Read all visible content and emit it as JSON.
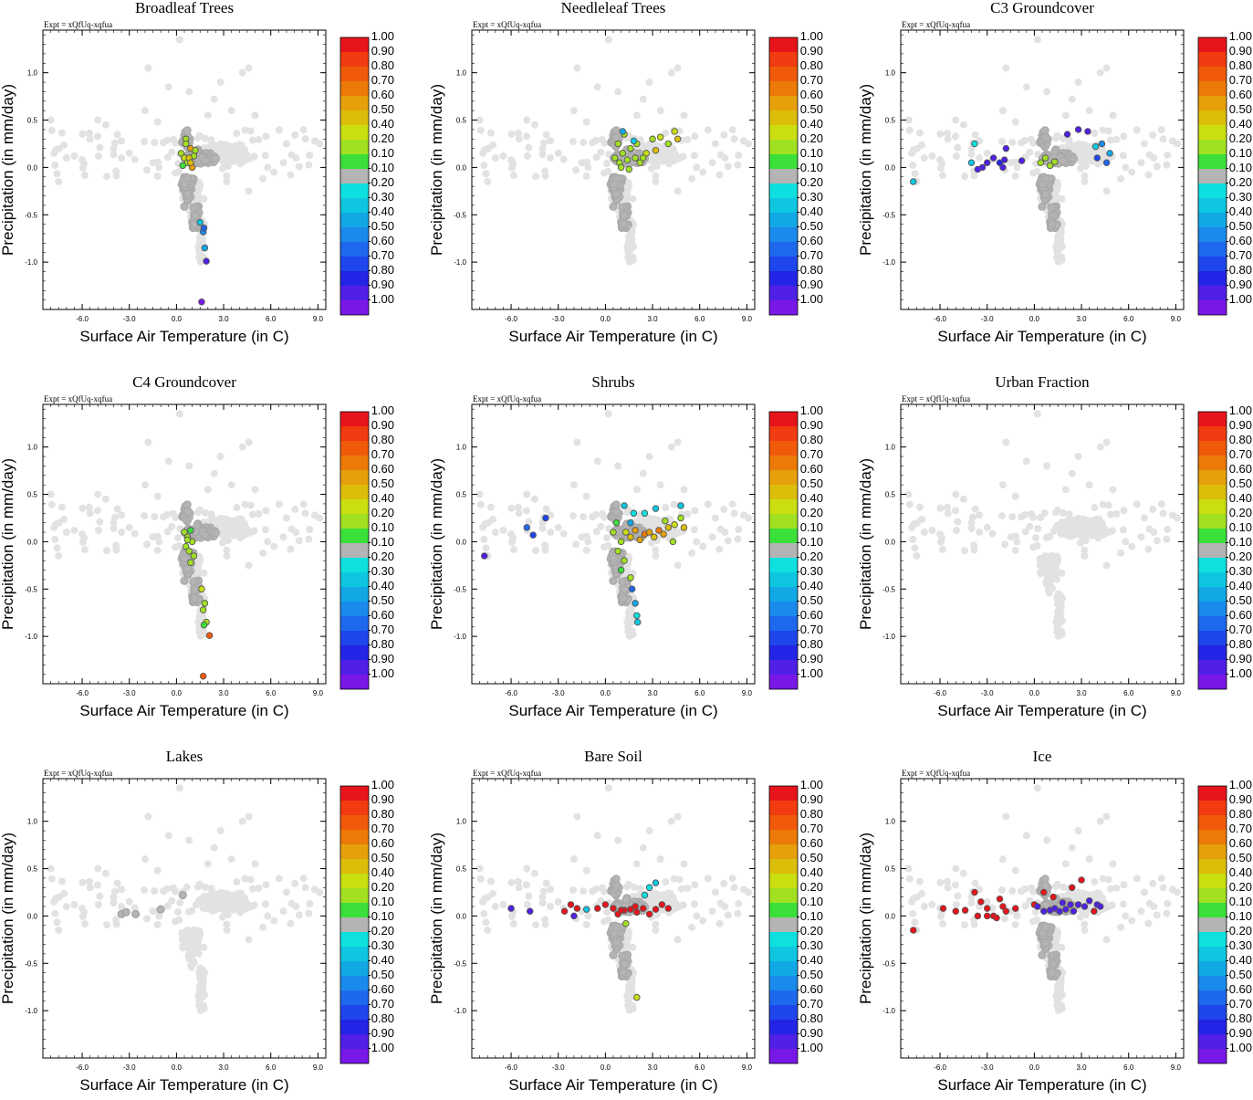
{
  "figure": {
    "expt_label": "Expt = xQfUq-xqfua",
    "xlabel": "Surface Air Temperature (in C)",
    "ylabel": "Precipitation (in mm/day)",
    "xlim": [
      -8.5,
      9.5
    ],
    "ylim": [
      -1.5,
      1.45
    ],
    "x_ticks": [
      "-6.0",
      "-3.0",
      "0.0",
      "3.0",
      "6.0",
      "9.0"
    ],
    "y_ticks": [
      "1.0",
      "0.5",
      "0.0",
      "-0.5",
      "-1.0"
    ],
    "x_tick_values": [
      -6,
      -3,
      0,
      3,
      6,
      9
    ],
    "y_tick_values": [
      1,
      0.5,
      0,
      -0.5,
      -1
    ]
  },
  "colorbar": {
    "labels": [
      "1.00",
      "0.90",
      "0.80",
      "0.70",
      "0.60",
      "0.50",
      "0.40",
      "0.20",
      "0.10",
      "-0.10",
      "-0.20",
      "-0.30",
      "-0.40",
      "-0.50",
      "-0.60",
      "-0.70",
      "-0.80",
      "-0.90",
      "-1.00"
    ],
    "colors": [
      "#e8141c",
      "#f03c10",
      "#f05a0a",
      "#ec7a06",
      "#e6a00a",
      "#dcbe0a",
      "#cade10",
      "#a2e022",
      "#3ce03a",
      "#b4b4b4",
      "#0ee0e0",
      "#0ec6e0",
      "#12a8e6",
      "#1a8aec",
      "#1e68ee",
      "#1e46ec",
      "#2424e6",
      "#5020e6",
      "#7818e6"
    ],
    "neutral_color": "#b4b4b4",
    "background_color": "#e2e2e2"
  },
  "chart_data": [
    {
      "type": "scatter",
      "title": "Broadleaf Trees",
      "xlabel": "Surface Air Temperature (in C)",
      "ylabel": "Precipitation (in mm/day)",
      "xlim": [
        -8.5,
        9.5
      ],
      "ylim": [
        -1.5,
        1.45
      ],
      "colored_points": [
        [
          0.3,
          0.15,
          0.2
        ],
        [
          0.5,
          0.1,
          0.4
        ],
        [
          0.7,
          0.05,
          0.2
        ],
        [
          0.9,
          0.2,
          0.6
        ],
        [
          1.1,
          0.12,
          0.3
        ],
        [
          0.6,
          0.3,
          0.2
        ],
        [
          1.0,
          0.0,
          0.6
        ],
        [
          0.8,
          0.1,
          0.5
        ],
        [
          1.2,
          0.18,
          0.3
        ],
        [
          0.4,
          0.02,
          0.1
        ],
        [
          0.6,
          0.25,
          0.3
        ],
        [
          0.9,
          0.05,
          0.45
        ],
        [
          1.5,
          -0.58,
          -0.3
        ],
        [
          1.7,
          -0.68,
          -0.5
        ],
        [
          1.8,
          -0.85,
          -0.4
        ],
        [
          1.9,
          -0.99,
          -0.9
        ],
        [
          1.6,
          -1.42,
          -1.0
        ],
        [
          1.75,
          -0.64,
          -0.6
        ]
      ]
    },
    {
      "type": "scatter",
      "title": "Needleleaf Trees",
      "xlabel": "Surface Air Temperature (in C)",
      "ylabel": "Precipitation (in mm/day)",
      "xlim": [
        -8.5,
        9.5
      ],
      "ylim": [
        -1.5,
        1.45
      ],
      "colored_points": [
        [
          0.6,
          0.1,
          0.2
        ],
        [
          0.9,
          0.05,
          0.2
        ],
        [
          1.1,
          0.15,
          0.3
        ],
        [
          1.4,
          0.08,
          0.2
        ],
        [
          1.6,
          0.2,
          0.2
        ],
        [
          1.9,
          0.1,
          0.3
        ],
        [
          2.2,
          0.05,
          0.2
        ],
        [
          0.8,
          0.25,
          0.3
        ],
        [
          2.6,
          0.15,
          0.4
        ],
        [
          3.0,
          0.3,
          0.3
        ],
        [
          3.5,
          0.32,
          0.4
        ],
        [
          4.0,
          0.25,
          0.2
        ],
        [
          4.4,
          0.38,
          0.4
        ],
        [
          4.6,
          0.3,
          0.5
        ],
        [
          1.2,
          0.35,
          0.2
        ],
        [
          2.0,
          0.25,
          0.3
        ],
        [
          1.0,
          0.0,
          0.2
        ],
        [
          1.5,
          -0.02,
          0.3
        ],
        [
          2.4,
          0.1,
          0.2
        ],
        [
          3.2,
          0.18,
          0.5
        ],
        [
          1.1,
          0.38,
          -0.4
        ],
        [
          1.8,
          0.28,
          -0.3
        ]
      ]
    },
    {
      "type": "scatter",
      "title": "C3 Groundcover",
      "xlabel": "Surface Air Temperature (in C)",
      "ylabel": "Precipitation (in mm/day)",
      "xlim": [
        -8.5,
        9.5
      ],
      "ylim": [
        -1.5,
        1.45
      ],
      "colored_points": [
        [
          -7.7,
          -0.15,
          -0.3
        ],
        [
          -3.8,
          0.25,
          -0.2
        ],
        [
          -4.0,
          0.05,
          -0.3
        ],
        [
          -3.3,
          0.0,
          -0.9
        ],
        [
          -3.0,
          0.05,
          -0.9
        ],
        [
          -2.6,
          0.1,
          -0.9
        ],
        [
          -2.2,
          0.05,
          -0.8
        ],
        [
          -1.9,
          0.08,
          -0.9
        ],
        [
          -3.6,
          -0.02,
          -0.9
        ],
        [
          -1.8,
          0.2,
          -0.9
        ],
        [
          -0.8,
          0.07,
          -0.9
        ],
        [
          -2.0,
          0.0,
          -0.9
        ],
        [
          0.4,
          0.05,
          0.2
        ],
        [
          0.7,
          0.1,
          0.2
        ],
        [
          1.0,
          0.02,
          0.3
        ],
        [
          1.3,
          0.06,
          0.2
        ],
        [
          2.1,
          0.35,
          -0.9
        ],
        [
          2.8,
          0.4,
          -0.9
        ],
        [
          3.4,
          0.38,
          -0.9
        ],
        [
          4.3,
          0.25,
          -0.5
        ],
        [
          4.0,
          0.1,
          -0.7
        ],
        [
          4.6,
          0.05,
          -0.6
        ],
        [
          4.8,
          0.15,
          -0.4
        ],
        [
          3.9,
          0.22,
          -0.3
        ]
      ]
    },
    {
      "type": "scatter",
      "title": "C4 Groundcover",
      "xlabel": "Surface Air Temperature (in C)",
      "ylabel": "Precipitation (in mm/day)",
      "xlim": [
        -8.5,
        9.5
      ],
      "ylim": [
        -1.5,
        1.45
      ],
      "colored_points": [
        [
          0.5,
          0.1,
          0.2
        ],
        [
          0.7,
          0.05,
          0.2
        ],
        [
          0.9,
          0.12,
          0.1
        ],
        [
          0.6,
          -0.05,
          0.2
        ],
        [
          1.0,
          0.0,
          0.3
        ],
        [
          0.8,
          -0.1,
          0.2
        ],
        [
          1.1,
          -0.15,
          0.3
        ],
        [
          0.9,
          -0.22,
          0.2
        ],
        [
          0.7,
          0.02,
          0.3
        ],
        [
          1.6,
          -0.5,
          0.4
        ],
        [
          1.8,
          -0.65,
          0.3
        ],
        [
          1.7,
          -0.72,
          0.2
        ],
        [
          1.9,
          -0.85,
          0.2
        ],
        [
          1.75,
          -0.88,
          0.1
        ],
        [
          2.1,
          -0.99,
          0.8
        ],
        [
          1.7,
          -1.42,
          0.8
        ]
      ]
    },
    {
      "type": "scatter",
      "title": "Shrubs",
      "xlabel": "Surface Air Temperature (in C)",
      "ylabel": "Precipitation (in mm/day)",
      "xlim": [
        -8.5,
        9.5
      ],
      "ylim": [
        -1.5,
        1.45
      ],
      "colored_points": [
        [
          -7.7,
          -0.15,
          -0.9
        ],
        [
          -4.6,
          0.07,
          -0.7
        ],
        [
          -3.8,
          0.25,
          -0.7
        ],
        [
          -5.0,
          0.15,
          -0.6
        ],
        [
          0.5,
          0.1,
          0.2
        ],
        [
          0.7,
          0.2,
          0.1
        ],
        [
          1.0,
          0.0,
          0.3
        ],
        [
          1.3,
          0.1,
          0.4
        ],
        [
          1.6,
          0.05,
          0.5
        ],
        [
          1.9,
          0.12,
          0.6
        ],
        [
          2.2,
          0.02,
          0.6
        ],
        [
          2.5,
          0.08,
          0.7
        ],
        [
          2.8,
          0.1,
          0.6
        ],
        [
          3.1,
          0.05,
          0.5
        ],
        [
          3.4,
          0.12,
          0.7
        ],
        [
          3.7,
          0.08,
          0.6
        ],
        [
          4.0,
          0.15,
          0.5
        ],
        [
          4.4,
          0.18,
          0.4
        ],
        [
          4.8,
          0.25,
          0.2
        ],
        [
          5.0,
          0.15,
          0.5
        ],
        [
          4.3,
          0.0,
          0.2
        ],
        [
          3.8,
          0.22,
          0.3
        ],
        [
          0.8,
          -0.1,
          0.2
        ],
        [
          1.2,
          -0.2,
          0.2
        ],
        [
          1.0,
          -0.3,
          0.1
        ],
        [
          1.6,
          -0.38,
          0.2
        ],
        [
          1.2,
          0.38,
          -0.3
        ],
        [
          1.8,
          0.3,
          -0.2
        ],
        [
          2.5,
          0.3,
          -0.2
        ],
        [
          3.2,
          0.35,
          -0.3
        ],
        [
          4.8,
          0.38,
          -0.3
        ],
        [
          1.6,
          0.2,
          -0.4
        ],
        [
          1.7,
          -0.5,
          -0.6
        ],
        [
          1.9,
          -0.65,
          -0.4
        ],
        [
          2.0,
          -0.78,
          -0.2
        ],
        [
          2.05,
          -0.85,
          -0.3
        ]
      ]
    },
    {
      "type": "scatter",
      "title": "Urban Fraction",
      "xlabel": "Surface Air Temperature (in C)",
      "ylabel": "Precipitation (in mm/day)",
      "xlim": [
        -8.5,
        9.5
      ],
      "ylim": [
        -1.5,
        1.45
      ],
      "hide_dark": true,
      "colored_points": []
    },
    {
      "type": "scatter",
      "title": "Lakes",
      "xlabel": "Surface Air Temperature (in C)",
      "ylabel": "Precipitation (in mm/day)",
      "xlim": [
        -8.5,
        9.5
      ],
      "ylim": [
        -1.5,
        1.45
      ],
      "hide_dark": true,
      "colored_points": [],
      "neutral_points": [
        [
          -3.5,
          0.02
        ],
        [
          -3.2,
          0.04
        ],
        [
          -2.6,
          0.02
        ],
        [
          -1.0,
          0.07
        ],
        [
          0.4,
          0.22
        ]
      ]
    },
    {
      "type": "scatter",
      "title": "Bare Soil",
      "xlabel": "Surface Air Temperature (in C)",
      "ylabel": "Precipitation (in mm/day)",
      "xlim": [
        -8.5,
        9.5
      ],
      "ylim": [
        -1.5,
        1.45
      ],
      "colored_points": [
        [
          -6.0,
          0.08,
          -0.9
        ],
        [
          -4.8,
          0.05,
          -0.9
        ],
        [
          -2.0,
          0.0,
          -0.9
        ],
        [
          -1.2,
          0.07,
          -0.3
        ],
        [
          -2.6,
          0.05,
          1.0
        ],
        [
          -2.2,
          0.12,
          1.0
        ],
        [
          -1.8,
          0.08,
          1.0
        ],
        [
          -0.5,
          0.08,
          1.0
        ],
        [
          0.0,
          0.12,
          1.0
        ],
        [
          0.5,
          0.08,
          1.0
        ],
        [
          0.8,
          0.02,
          1.0
        ],
        [
          1.2,
          0.06,
          1.0
        ],
        [
          1.6,
          0.07,
          1.0
        ],
        [
          2.0,
          0.04,
          1.0
        ],
        [
          2.4,
          0.08,
          1.0
        ],
        [
          2.8,
          0.02,
          1.0
        ],
        [
          3.2,
          0.07,
          1.0
        ],
        [
          3.6,
          0.12,
          1.0
        ],
        [
          4.0,
          0.08,
          1.0
        ],
        [
          1.0,
          0.06,
          1.0
        ],
        [
          1.9,
          0.1,
          1.0
        ],
        [
          2.8,
          0.3,
          -0.2
        ],
        [
          3.2,
          0.35,
          -0.3
        ],
        [
          2.5,
          0.22,
          -0.2
        ],
        [
          1.3,
          -0.08,
          0.2
        ],
        [
          2.0,
          -0.86,
          0.4
        ]
      ]
    },
    {
      "type": "scatter",
      "title": "Ice",
      "xlabel": "Surface Air Temperature (in C)",
      "ylabel": "Precipitation (in mm/day)",
      "xlim": [
        -8.5,
        9.5
      ],
      "ylim": [
        -1.5,
        1.45
      ],
      "colored_points": [
        [
          -7.7,
          -0.15,
          1.0
        ],
        [
          -5.8,
          0.08,
          1.0
        ],
        [
          -5.0,
          0.05,
          1.0
        ],
        [
          -4.4,
          0.06,
          1.0
        ],
        [
          -3.8,
          0.25,
          1.0
        ],
        [
          -3.4,
          0.15,
          1.0
        ],
        [
          -3.0,
          0.08,
          1.0
        ],
        [
          -2.6,
          0.0,
          1.0
        ],
        [
          -2.2,
          0.18,
          1.0
        ],
        [
          -2.0,
          0.1,
          1.0
        ],
        [
          -1.8,
          0.05,
          1.0
        ],
        [
          -1.2,
          0.08,
          1.0
        ],
        [
          -3.6,
          0.0,
          1.0
        ],
        [
          -3.0,
          0.0,
          1.0
        ],
        [
          -2.4,
          -0.02,
          1.0
        ],
        [
          0.0,
          0.12,
          1.0
        ],
        [
          0.6,
          0.25,
          1.0
        ],
        [
          1.2,
          0.2,
          1.0
        ],
        [
          2.4,
          0.3,
          1.0
        ],
        [
          3.0,
          0.38,
          1.0
        ],
        [
          3.8,
          0.05,
          1.0
        ],
        [
          0.2,
          0.1,
          -0.9
        ],
        [
          0.6,
          0.05,
          -0.9
        ],
        [
          1.0,
          0.06,
          -0.9
        ],
        [
          1.3,
          0.08,
          -0.9
        ],
        [
          1.6,
          0.05,
          -0.9
        ],
        [
          2.0,
          0.07,
          -0.9
        ],
        [
          2.5,
          0.05,
          -0.9
        ],
        [
          2.8,
          0.12,
          -0.9
        ],
        [
          3.2,
          0.1,
          -0.9
        ],
        [
          3.5,
          0.16,
          -0.9
        ],
        [
          4.0,
          0.12,
          -0.9
        ],
        [
          4.2,
          0.1,
          -0.9
        ],
        [
          1.8,
          0.14,
          -0.9
        ],
        [
          2.3,
          0.12,
          -0.9
        ]
      ]
    }
  ]
}
